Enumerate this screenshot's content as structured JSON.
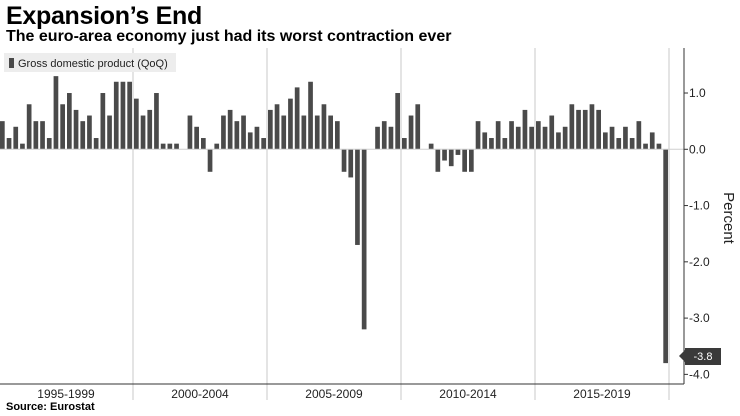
{
  "title": "Expansion’s End",
  "subtitle": "The euro-area economy just had its worst contraction ever",
  "source": "Source: Eurostat",
  "chart_data": {
    "type": "bar",
    "ylabel": "Percent",
    "ylim": [
      -4.1,
      1.8
    ],
    "yticks": [
      1.0,
      0.0,
      -1.0,
      -2.0,
      -3.0,
      -4.0
    ],
    "ytick_labels": [
      "1.0",
      "0.0",
      "-1.0",
      "-2.0",
      "-3.0",
      "-4.0"
    ],
    "grid": "vertical separators between periods",
    "legend_position": "top-left",
    "bar_color": "#4a4a4a",
    "period_labels": [
      "1995-1999",
      "2000-2004",
      "2005-2009",
      "2010-2014",
      "2015-2019"
    ],
    "last_value_label": "-3.8",
    "series": [
      {
        "name": "Gross domestic product (QoQ)",
        "values": [
          0.5,
          0.2,
          0.4,
          0.1,
          0.8,
          0.5,
          0.5,
          0.2,
          1.3,
          0.8,
          1.0,
          0.7,
          0.5,
          0.6,
          0.2,
          1.0,
          0.6,
          1.2,
          1.2,
          1.2,
          0.9,
          0.6,
          0.7,
          1.0,
          0.1,
          0.1,
          0.1,
          0.0,
          0.6,
          0.4,
          0.2,
          -0.4,
          0.1,
          0.6,
          0.7,
          0.5,
          0.6,
          0.3,
          0.4,
          0.2,
          0.7,
          0.8,
          0.6,
          0.9,
          1.1,
          0.6,
          1.2,
          0.6,
          0.8,
          0.6,
          0.5,
          -0.4,
          -0.5,
          -1.7,
          -3.2,
          0.0,
          0.4,
          0.5,
          0.4,
          1.0,
          0.2,
          0.6,
          0.8,
          0.0,
          0.1,
          -0.4,
          -0.2,
          -0.3,
          -0.1,
          -0.4,
          -0.4,
          0.5,
          0.3,
          0.2,
          0.5,
          0.2,
          0.5,
          0.4,
          0.7,
          0.4,
          0.5,
          0.4,
          0.6,
          0.3,
          0.4,
          0.8,
          0.7,
          0.7,
          0.8,
          0.7,
          0.3,
          0.4,
          0.2,
          0.4,
          0.2,
          0.5,
          0.1,
          0.3,
          0.1,
          -3.8
        ]
      }
    ]
  }
}
